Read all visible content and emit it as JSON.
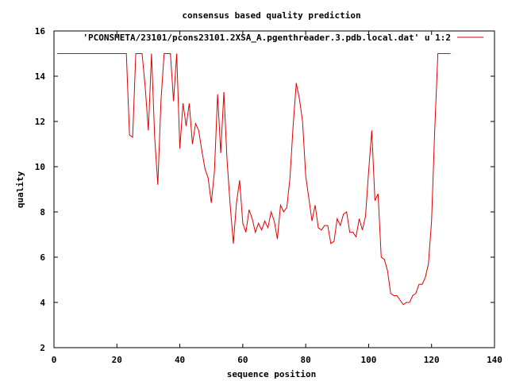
{
  "chart_data": {
    "type": "line",
    "title": "consensus based quality prediction",
    "xlabel": "sequence position",
    "ylabel": "quality",
    "xlim": [
      0,
      140
    ],
    "ylim": [
      2,
      16
    ],
    "xticks": [
      0,
      20,
      40,
      60,
      80,
      100,
      120,
      140
    ],
    "yticks": [
      2,
      4,
      6,
      8,
      10,
      12,
      14,
      16
    ],
    "grid": false,
    "legend_position": "top-right",
    "series": [
      {
        "name": "'PCONSMETA/23101/pcons23101.2XSA_A.pgenthreader.3.pdb.local.dat' u 1:2",
        "color": "#e00000",
        "x": [
          1,
          2,
          3,
          4,
          5,
          6,
          7,
          8,
          9,
          10,
          11,
          12,
          13,
          14,
          15,
          16,
          17,
          18,
          19,
          20,
          21,
          22,
          23,
          24,
          25,
          26,
          27,
          28,
          29,
          30,
          31,
          32,
          33,
          34,
          35,
          36,
          37,
          38,
          39,
          40,
          41,
          42,
          43,
          44,
          45,
          46,
          47,
          48,
          49,
          50,
          51,
          52,
          53,
          54,
          55,
          56,
          57,
          58,
          59,
          60,
          61,
          62,
          63,
          64,
          65,
          66,
          67,
          68,
          69,
          70,
          71,
          72,
          73,
          74,
          75,
          76,
          77,
          78,
          79,
          80,
          81,
          82,
          83,
          84,
          85,
          86,
          87,
          88,
          89,
          90,
          91,
          92,
          93,
          94,
          95,
          96,
          97,
          98,
          99,
          100,
          101,
          102,
          103,
          104,
          105,
          106,
          107,
          108,
          109,
          110,
          111,
          112,
          113,
          114,
          115,
          116,
          117,
          118,
          119,
          120,
          121,
          122,
          123,
          124,
          125,
          126
        ],
        "y": [
          15,
          15,
          15,
          15,
          15,
          15,
          15,
          15,
          15,
          15,
          15,
          15,
          15,
          15,
          15,
          15,
          15,
          15,
          15,
          15,
          15,
          15,
          15,
          11.4,
          11.3,
          15,
          15,
          15,
          13.5,
          11.6,
          15,
          11.3,
          9.2,
          12.9,
          15,
          15,
          15,
          12.9,
          15,
          10.8,
          12.8,
          11.8,
          12.8,
          11.0,
          11.9,
          11.6,
          10.7,
          9.9,
          9.5,
          8.4,
          9.8,
          13.2,
          10.6,
          13.3,
          10.3,
          8.3,
          6.6,
          8.4,
          9.4,
          7.5,
          7.1,
          8.1,
          7.7,
          7.1,
          7.5,
          7.2,
          7.6,
          7.3,
          8.0,
          7.6,
          6.8,
          8.3,
          8.0,
          8.2,
          9.5,
          11.8,
          13.7,
          13.0,
          12.0,
          9.6,
          8.6,
          7.6,
          8.3,
          7.3,
          7.2,
          7.4,
          7.4,
          6.6,
          6.7,
          7.7,
          7.4,
          7.9,
          8.0,
          7.1,
          7.1,
          6.9,
          7.7,
          7.2,
          7.8,
          9.8,
          11.6,
          8.5,
          8.8,
          6.0,
          5.9,
          5.4,
          4.4,
          4.3,
          4.3,
          4.1,
          3.9,
          4.0,
          4.0,
          4.3,
          4.4,
          4.8,
          4.8,
          5.1,
          5.7,
          7.6,
          11.6,
          15,
          15,
          15,
          15,
          15
        ]
      }
    ]
  }
}
